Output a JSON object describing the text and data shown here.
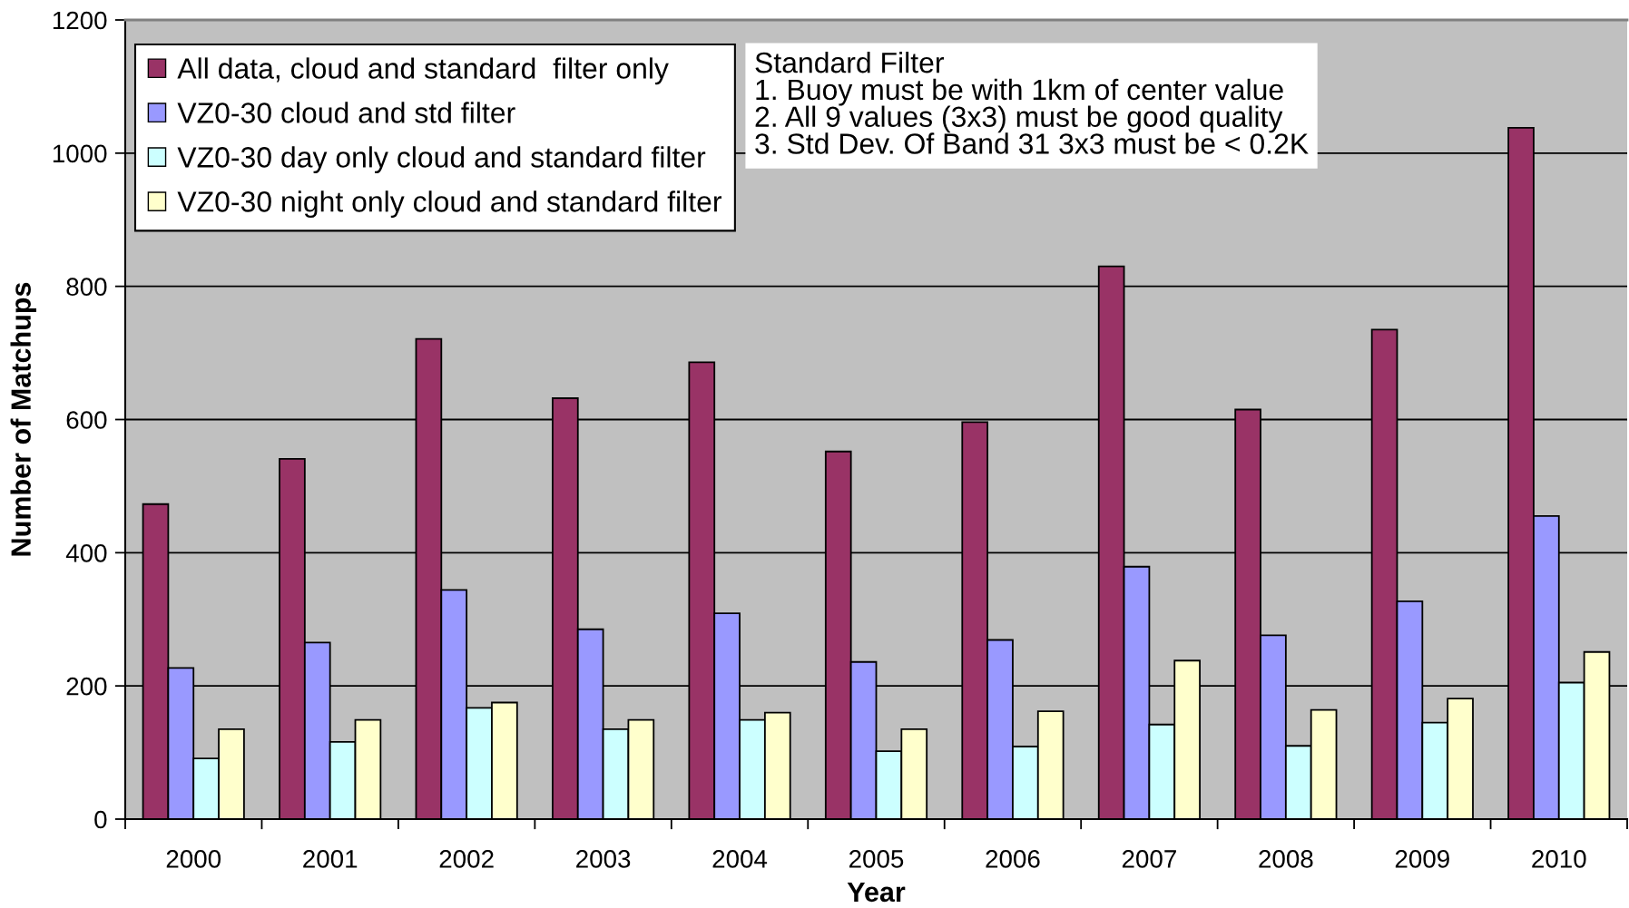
{
  "chart_data": {
    "type": "bar",
    "xlabel": "Year",
    "ylabel": "Number of Matchups",
    "categories": [
      "2000",
      "2001",
      "2002",
      "2003",
      "2004",
      "2005",
      "2006",
      "2007",
      "2008",
      "2009",
      "2010"
    ],
    "series": [
      {
        "name": "All data, cloud and standard  filter only",
        "color": "#993366",
        "values": [
          473,
          541,
          721,
          632,
          686,
          552,
          596,
          830,
          615,
          735,
          1038
        ]
      },
      {
        "name": "VZ0-30 cloud and std filter",
        "color": "#9999ff",
        "values": [
          227,
          265,
          344,
          285,
          309,
          236,
          269,
          379,
          276,
          327,
          455
        ]
      },
      {
        "name": "VZ0-30 day only cloud and standard filter",
        "color": "#ccffff",
        "values": [
          91,
          116,
          167,
          135,
          149,
          102,
          109,
          142,
          110,
          145,
          205
        ]
      },
      {
        "name": "VZ0-30 night only cloud and standard filter",
        "color": "#ffffcc",
        "values": [
          135,
          149,
          175,
          149,
          160,
          135,
          162,
          238,
          164,
          181,
          251
        ]
      }
    ],
    "ylim": [
      0,
      1200
    ],
    "yticks": [
      0,
      200,
      400,
      600,
      800,
      1000,
      1200
    ],
    "grid": "y",
    "legend": "top left",
    "annotations": [
      "Standard Filter\n1. Buoy must be with 1km of center value\n2. All 9 values (3x3) must be good quality\n3. Std Dev. Of Band 31 3x3 must be < 0.2K"
    ]
  }
}
